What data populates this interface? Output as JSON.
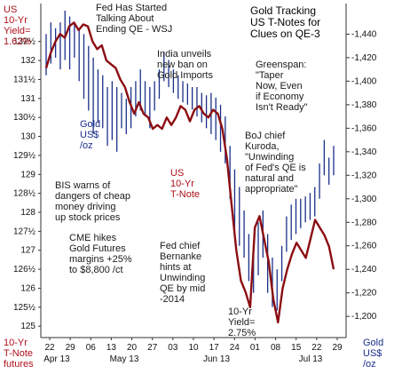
{
  "chart_data": {
    "type": "line",
    "title": "Gold Tracking\nUS T-Notes for\nClues on QE-3",
    "left_axis": {
      "label": "10-Yr\nT-Note\nfutures",
      "ticks": [
        "125",
        "125½",
        "126",
        "126½",
        "127",
        "127½",
        "128",
        "128½",
        "129",
        "129½",
        "130",
        "130½",
        "131",
        "131½",
        "132",
        "132½"
      ],
      "tick_values": [
        125,
        125.5,
        126,
        126.5,
        127,
        127.5,
        128,
        128.5,
        129,
        129.5,
        130,
        130.5,
        131,
        131.5,
        132,
        132.5
      ],
      "range": [
        124.7,
        133.5
      ]
    },
    "right_axis": {
      "label": "Gold\nUS$\n/oz",
      "ticks": [
        "1,200",
        "1,220",
        "1,240",
        "1,260",
        "1,280",
        "1,300",
        "1,320",
        "1,340",
        "1,360",
        "1,380",
        "1,400",
        "1,420",
        "1,440"
      ],
      "tick_values": [
        1200,
        1220,
        1240,
        1260,
        1280,
        1300,
        1320,
        1340,
        1360,
        1380,
        1400,
        1420,
        1440
      ],
      "range": [
        1182,
        1466
      ]
    },
    "x_axis": {
      "day_ticks": [
        "22",
        "29",
        "06",
        "13",
        "20",
        "27",
        "03",
        "10",
        "17",
        "24",
        "01",
        "08",
        "15",
        "22",
        "29"
      ],
      "month_labels": [
        "Apr 13",
        "May 13",
        "Jun 13",
        "Jul 13"
      ]
    },
    "series": [
      {
        "name": "10-Yr T-Note futures",
        "color": "#8b0d12",
        "axis": "left",
        "values": [
          131.8,
          132.2,
          132.5,
          132.7,
          132.6,
          132.9,
          133.0,
          132.8,
          132.95,
          132.9,
          132.5,
          132.3,
          132.4,
          132.0,
          131.9,
          131.8,
          131.5,
          131.3,
          130.9,
          130.6,
          130.9,
          130.6,
          130.5,
          130.2,
          130.3,
          130.2,
          130.5,
          130.3,
          130.5,
          130.8,
          130.7,
          130.4,
          130.7,
          130.8,
          130.6,
          130.5,
          130.7,
          130.6,
          130.2,
          129.4,
          128.2,
          127.0,
          126.2,
          125.9,
          125.5,
          127.6,
          127.9,
          127.3,
          126.7,
          125.7,
          125.1,
          126.0,
          126.5,
          126.9,
          127.2,
          127.0,
          126.8,
          127.3,
          127.8,
          127.6,
          127.4,
          127.1,
          126.5
        ]
      },
      {
        "name": "Gold US$/oz",
        "color": "#1a2f8a",
        "axis": "right",
        "bars": [
          [
            1440,
            1405
          ],
          [
            1450,
            1415
          ],
          [
            1445,
            1420
          ],
          [
            1450,
            1410
          ],
          [
            1460,
            1418
          ],
          [
            1455,
            1410
          ],
          [
            1450,
            1420
          ],
          [
            1445,
            1400
          ],
          [
            1440,
            1385
          ],
          [
            1430,
            1375
          ],
          [
            1420,
            1355
          ],
          [
            1410,
            1365
          ],
          [
            1405,
            1360
          ],
          [
            1395,
            1345
          ],
          [
            1400,
            1350
          ],
          [
            1395,
            1340
          ],
          [
            1390,
            1360
          ],
          [
            1385,
            1355
          ],
          [
            1395,
            1360
          ],
          [
            1400,
            1370
          ],
          [
            1410,
            1375
          ],
          [
            1400,
            1370
          ],
          [
            1395,
            1360
          ],
          [
            1400,
            1375
          ],
          [
            1410,
            1385
          ],
          [
            1425,
            1400
          ],
          [
            1418,
            1395
          ],
          [
            1410,
            1390
          ],
          [
            1405,
            1385
          ],
          [
            1400,
            1382
          ],
          [
            1398,
            1380
          ],
          [
            1395,
            1376
          ],
          [
            1395,
            1370
          ],
          [
            1390,
            1365
          ],
          [
            1388,
            1360
          ],
          [
            1390,
            1355
          ],
          [
            1386,
            1350
          ],
          [
            1380,
            1340
          ],
          [
            1370,
            1330
          ],
          [
            1345,
            1300
          ],
          [
            1325,
            1270
          ],
          [
            1310,
            1260
          ],
          [
            1290,
            1250
          ],
          [
            1270,
            1230
          ],
          [
            1262,
            1220
          ],
          [
            1280,
            1235
          ],
          [
            1290,
            1250
          ],
          [
            1270,
            1220
          ],
          [
            1250,
            1208
          ],
          [
            1240,
            1205
          ],
          [
            1260,
            1230
          ],
          [
            1285,
            1255
          ],
          [
            1295,
            1265
          ],
          [
            1300,
            1270
          ],
          [
            1300,
            1275
          ],
          [
            1302,
            1280
          ],
          [
            1305,
            1282
          ],
          [
            1310,
            1285
          ],
          [
            1330,
            1300
          ],
          [
            1350,
            1320
          ],
          [
            1335,
            1312
          ],
          [
            1345,
            1320
          ]
        ]
      }
    ],
    "annotations": [
      {
        "id": "us-yield-start",
        "text": "US\n10-Yr\nYield=\n1.62%",
        "color": "red"
      },
      {
        "id": "fed-started",
        "text": "Fed Has Started\nTalking About\nEnding QE - WSJ",
        "color": "dark"
      },
      {
        "id": "india-ban",
        "text": "India unveils\nnew ban on\nGold Imports",
        "color": "dark"
      },
      {
        "id": "greenspan",
        "text": "Greenspan:\n\"Taper\nNow, Even\nif Economy\nIsn't Ready\"",
        "color": "dark"
      },
      {
        "id": "gold-label",
        "text": "Gold\nUS$\n/oz",
        "color": "blue"
      },
      {
        "id": "kuroda",
        "text": "BoJ chief\nKuroda,\n\"Unwinding\nof Fed's QE is\nnatural and\nappropriate\"",
        "color": "dark"
      },
      {
        "id": "us-tnote-label",
        "text": "US\n10-Yr\nT-Note",
        "color": "red"
      },
      {
        "id": "bis-warns",
        "text": "BIS warns of\ndangers of cheap\nmoney driving\nup stock prices",
        "color": "dark"
      },
      {
        "id": "cme-hikes",
        "text": "CME hikes\nGold Futures\nmargins +25%\nto $8,800 /ct",
        "color": "dark"
      },
      {
        "id": "bernanke",
        "text": "Fed chief\nBernanke\nhints at\nUnwinding\nQE by mid\n-2014",
        "color": "dark"
      },
      {
        "id": "yield-end",
        "text": "10-Yr\nYield=\n2.75%",
        "color": "dark"
      }
    ]
  }
}
